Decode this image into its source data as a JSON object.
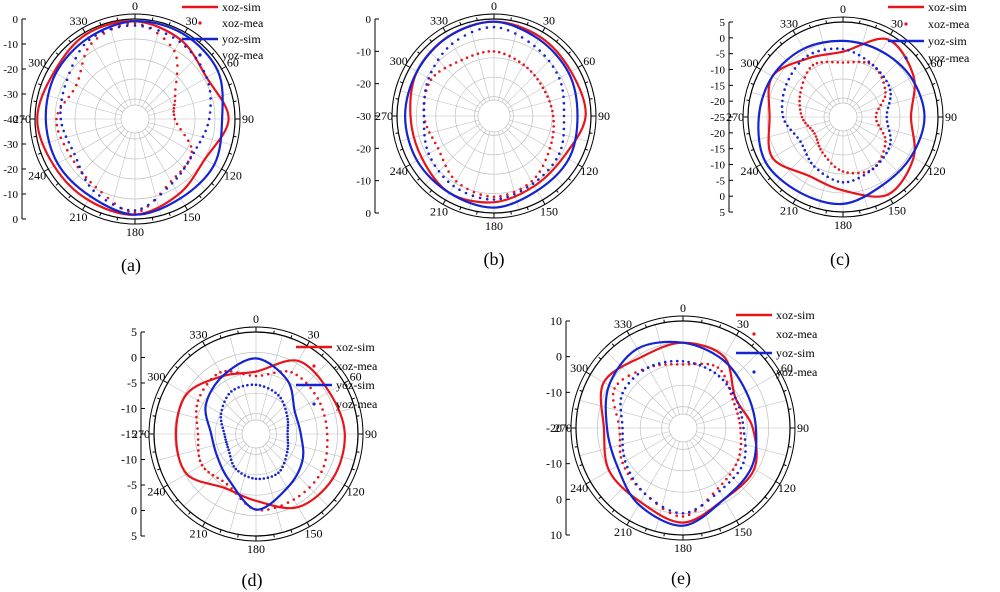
{
  "panels": [
    {
      "label": "(a)",
      "radial_ticks": [
        "0",
        "-10",
        "-20",
        "-30",
        "-40",
        "-30",
        "-20",
        "-10",
        "0"
      ],
      "angle_labels": [
        "0",
        "30",
        "60",
        "90",
        "120",
        "150",
        "180",
        "210",
        "240",
        "270",
        "300",
        "330"
      ],
      "legend": [
        "xoz-sim",
        "xoz-mea",
        "yoz-sim",
        "yoz-mea"
      ]
    },
    {
      "label": "(b)",
      "radial_ticks": [
        "0",
        "-10",
        "-20",
        "-30",
        "-20",
        "-10",
        "0"
      ],
      "angle_labels": [
        "0",
        "30",
        "60",
        "90",
        "120",
        "150",
        "180",
        "210",
        "240",
        "270",
        "300",
        "330"
      ],
      "legend": []
    },
    {
      "label": "(c)",
      "radial_ticks": [
        "5",
        "0",
        "-5",
        "-10",
        "-15",
        "-20",
        "-25",
        "-20",
        "-15",
        "-10",
        "-5",
        "0",
        "5"
      ],
      "angle_labels": [
        "0",
        "30",
        "60",
        "90",
        "120",
        "150",
        "180",
        "210",
        "240",
        "270",
        "300",
        "330"
      ],
      "legend": [
        "xoz-sim",
        "xoz-mea",
        "yoz-sim",
        "yoz-mea"
      ]
    },
    {
      "label": "(d)",
      "radial_ticks": [
        "5",
        "0",
        "-5",
        "-10",
        "-15",
        "-10",
        "-5",
        "0",
        "5"
      ],
      "angle_labels": [
        "0",
        "30",
        "60",
        "90",
        "120",
        "150",
        "180",
        "210",
        "240",
        "270",
        "300",
        "330"
      ],
      "legend": [
        "xoz-sim",
        "xoz-mea",
        "yoz-sim",
        "yoz-mea"
      ]
    },
    {
      "label": "(e)",
      "radial_ticks": [
        "10",
        "0",
        "-10",
        "-20",
        "-10",
        "0",
        "10"
      ],
      "angle_labels": [
        "0",
        "30",
        "60",
        "90",
        "120",
        "150",
        "180",
        "210",
        "240",
        "270",
        "300",
        "330"
      ],
      "legend": [
        "xoz-sim",
        "xoz-mea",
        "yoz-sim",
        "yoz-mea"
      ]
    }
  ],
  "colors": {
    "xoz": "#e8141b",
    "yoz": "#1424d2",
    "grid": "#bfbfbf",
    "axis": "#000000"
  },
  "chart_data": [
    {
      "type": "polar-line",
      "panel": "(a)",
      "rlim": [
        -40,
        0
      ],
      "angles_deg": [
        0,
        30,
        60,
        90,
        120,
        150,
        180,
        210,
        240,
        270,
        300,
        330
      ],
      "series": [
        {
          "name": "xoz-sim",
          "values": [
            -1,
            -4,
            -8,
            -3,
            -9,
            -6,
            -2,
            -3,
            -3,
            -1,
            -3,
            -1
          ]
        },
        {
          "name": "xoz-mea",
          "values": [
            -2,
            -10,
            -25,
            -28,
            -16,
            -13,
            -3,
            -10,
            -12,
            -10,
            -15,
            -6
          ]
        },
        {
          "name": "yoz-sim",
          "values": [
            -1,
            -1,
            -2,
            -6,
            -4,
            -4,
            -2,
            -5,
            -5,
            -5,
            -4,
            -3
          ]
        },
        {
          "name": "yoz-mea",
          "values": [
            -3,
            -5,
            -8,
            -12,
            -15,
            -12,
            -4,
            -8,
            -14,
            -12,
            -10,
            -4
          ]
        }
      ]
    },
    {
      "type": "polar-line",
      "panel": "(b)",
      "rlim": [
        -30,
        0
      ],
      "angles_deg": [
        0,
        30,
        60,
        90,
        120,
        150,
        180,
        210,
        240,
        270,
        300,
        330
      ],
      "series": [
        {
          "name": "xoz-sim",
          "values": [
            -1,
            -2,
            -3,
            -2,
            -6,
            -6,
            -4,
            -3,
            -5,
            -5,
            -3,
            -2
          ]
        },
        {
          "name": "xoz-mea",
          "values": [
            -12,
            -14,
            -15,
            -14,
            -12,
            -8,
            -6,
            -8,
            -12,
            -10,
            -9,
            -12
          ]
        },
        {
          "name": "yoz-sim",
          "values": [
            -1,
            -3,
            -4,
            -5,
            -4,
            -4,
            -2,
            -3,
            -3,
            -3,
            -3,
            -2
          ]
        },
        {
          "name": "yoz-mea",
          "values": [
            -3,
            -6,
            -8,
            -10,
            -8,
            -7,
            -5,
            -6,
            -8,
            -10,
            -8,
            -5
          ]
        }
      ]
    },
    {
      "type": "polar-line",
      "panel": "(c)",
      "rlim": [
        -25,
        5
      ],
      "angles_deg": [
        0,
        30,
        60,
        90,
        120,
        150,
        180,
        210,
        240,
        270,
        300,
        330
      ],
      "series": [
        {
          "name": "xoz-sim",
          "values": [
            -6,
            3,
            0,
            -5,
            0,
            3,
            -3,
            -5,
            0,
            -3,
            0,
            -5
          ]
        },
        {
          "name": "xoz-mea",
          "values": [
            -10,
            -8,
            -12,
            -18,
            -12,
            -8,
            -10,
            -15,
            -18,
            -15,
            -12,
            -8
          ]
        },
        {
          "name": "yoz-sim",
          "values": [
            -2,
            -2,
            -1,
            0,
            -1,
            -1,
            2,
            2,
            3,
            1,
            0,
            -1
          ]
        },
        {
          "name": "yoz-mea",
          "values": [
            -5,
            -8,
            -10,
            -14,
            -10,
            -8,
            -6,
            -9,
            -12,
            -8,
            -6,
            -4
          ]
        }
      ]
    },
    {
      "type": "polar-line",
      "panel": "(d)",
      "rlim": [
        -15,
        5
      ],
      "angles_deg": [
        0,
        30,
        60,
        90,
        120,
        150,
        180,
        210,
        240,
        270,
        300,
        330
      ],
      "series": [
        {
          "name": "xoz-sim",
          "values": [
            -4,
            1,
            1,
            2,
            2,
            1,
            -3,
            -4,
            0,
            0,
            0,
            -3
          ]
        },
        {
          "name": "xoz-mea",
          "values": [
            -5,
            -2,
            -2,
            -2,
            -1,
            -1,
            -1,
            -5,
            -4,
            -5,
            -3,
            -2
          ]
        },
        {
          "name": "yoz-sim",
          "values": [
            -1,
            -4,
            -8,
            -8,
            -6,
            -4,
            -1,
            -6,
            -8,
            -8,
            -5,
            -3
          ]
        },
        {
          "name": "yoz-mea",
          "values": [
            -7,
            -8,
            -10,
            -11,
            -10,
            -8,
            -8,
            -9,
            -11,
            -11,
            -9,
            -7
          ]
        }
      ]
    },
    {
      "type": "polar-line",
      "panel": "(e)",
      "rlim": [
        -20,
        10
      ],
      "angles_deg": [
        0,
        30,
        60,
        90,
        120,
        150,
        180,
        210,
        240,
        270,
        300,
        330
      ],
      "series": [
        {
          "name": "xoz-sim",
          "values": [
            3,
            2,
            -5,
            -2,
            2,
            2,
            6,
            3,
            3,
            1,
            5,
            2
          ]
        },
        {
          "name": "xoz-mea",
          "values": [
            -4,
            -2,
            -6,
            -6,
            -4,
            -2,
            4,
            0,
            -2,
            -4,
            1,
            -2
          ]
        },
        {
          "name": "yoz-sim",
          "values": [
            3,
            1,
            -1,
            -1,
            1,
            2,
            7,
            4,
            0,
            0,
            3,
            5
          ]
        },
        {
          "name": "yoz-mea",
          "values": [
            -3,
            -4,
            -5,
            -5,
            -2,
            -1,
            3,
            0,
            -3,
            -5,
            -2,
            -2
          ]
        }
      ]
    }
  ]
}
